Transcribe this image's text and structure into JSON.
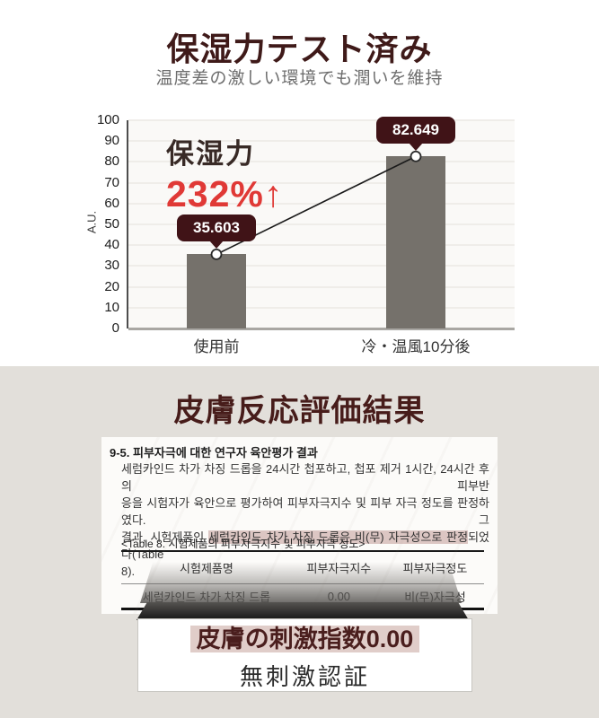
{
  "section_moisture": {
    "title": "保湿力テスト済み",
    "subtitle": "温度差の激しい環境でも潤いを維持",
    "annotation_label": "保湿力",
    "annotation_value": "232%↑"
  },
  "chart_data": {
    "type": "bar",
    "categories": [
      "使用前",
      "冷・温風10分後"
    ],
    "values": [
      35.603,
      82.649
    ],
    "value_labels": [
      "35.603",
      "82.649"
    ],
    "title": "",
    "xlabel": "",
    "ylabel": "A.U.",
    "ylim": [
      0,
      100
    ],
    "yticks": [
      0,
      10,
      20,
      30,
      40,
      50,
      60,
      70,
      80,
      90,
      100
    ],
    "grid": true,
    "legend": "none",
    "bar_color": "#75716b",
    "badge_color": "#401317",
    "annotation": "保湿力 232%↑"
  },
  "section_skin": {
    "title": "皮膚反応評価結果",
    "document": {
      "heading": "9-5. 피부자극에 대한 연구자 육안평가 결과",
      "body_line1": "세럼카인드 차가 차징 드롭을 24시간 첩포하고, 첩포 제거 1시간, 24시간 후의 피부반",
      "body_line2": "응을 시험자가 육안으로 평가하여 피부자극지수 및 피부 자극 정도를 판정하였다. 그",
      "body_line3_pre": "결과, 시험제품인 ",
      "body_line3_hl": "세럼카인드 차가 차징 드롭은 비(무) 자극성으로 판정",
      "body_line3_post": "되었다(Table",
      "body_line4": "8)."
    },
    "table": {
      "caption": "<Table 8. 시험제품의 피부자극지수 및 피부자극 정도>",
      "headers": [
        "시험제품명",
        "피부자극지수",
        "피부자극정도"
      ],
      "rows": [
        [
          "세럼카인드 차가 차징 드롭",
          "0.00",
          "비(무)자극성"
        ]
      ]
    },
    "callout": {
      "line1": "皮膚の刺激指数0.00",
      "line2": "無刺激認証"
    }
  },
  "colors": {
    "accent_red": "#e03936",
    "dark_maroon": "#401317",
    "title_maroon": "#3f1a19",
    "highlight_pink": "#dcc6c3",
    "bar_gray": "#75716b",
    "background_gray": "#e2dfda"
  }
}
